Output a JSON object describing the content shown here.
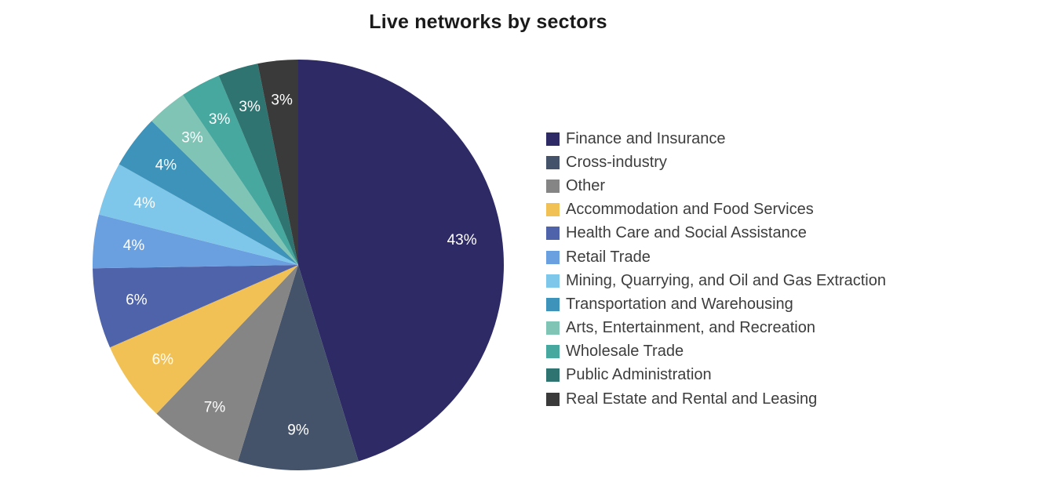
{
  "chart_data": {
    "type": "pie",
    "title": "Live networks by sectors",
    "legend_position": "right",
    "label_color": "#ffffff",
    "slices": [
      {
        "label": "Finance and Insurance",
        "value": 43,
        "display": "43%",
        "color": "#2e2a66"
      },
      {
        "label": "Cross-industry",
        "value": 9,
        "display": "9%",
        "color": "#45536a"
      },
      {
        "label": "Other",
        "value": 7,
        "display": "7%",
        "color": "#858585"
      },
      {
        "label": "Accommodation and Food Services",
        "value": 6,
        "display": "6%",
        "color": "#f2c156"
      },
      {
        "label": "Health Care and Social Assistance",
        "value": 6,
        "display": "6%",
        "color": "#4f63ab"
      },
      {
        "label": "Retail Trade",
        "value": 4,
        "display": "4%",
        "color": "#6a9fe0"
      },
      {
        "label": "Mining, Quarrying, and Oil and Gas Extraction",
        "value": 4,
        "display": "4%",
        "color": "#7ec6ea"
      },
      {
        "label": "Transportation and Warehousing",
        "value": 4,
        "display": "4%",
        "color": "#3e93ba"
      },
      {
        "label": "Arts, Entertainment, and Recreation",
        "value": 3,
        "display": "3%",
        "color": "#80c4b6"
      },
      {
        "label": "Wholesale Trade",
        "value": 3,
        "display": "3%",
        "color": "#46a89e"
      },
      {
        "label": "Public Administration",
        "value": 3,
        "display": "3%",
        "color": "#2f7470"
      },
      {
        "label": "Real Estate and Rental and Leasing",
        "value": 3,
        "display": "3%",
        "color": "#3a3a3a"
      }
    ]
  }
}
